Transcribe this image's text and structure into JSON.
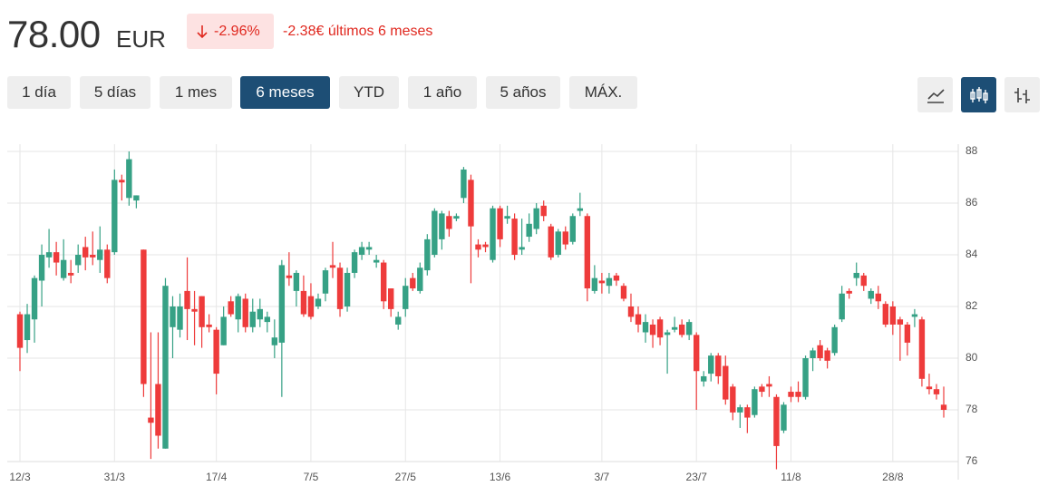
{
  "header": {
    "price": "78.00",
    "currency": "EUR",
    "change_pct": "-2.96%",
    "change_abs": "-2.38€ últimos 6 meses",
    "ranges": [
      "1 día",
      "5 días",
      "1 mes",
      "6 meses",
      "YTD",
      "1 año",
      "5 años",
      "MÁX."
    ]
  },
  "chart_data": {
    "type": "candlestick",
    "up_color": "#36a185",
    "down_color": "#ee3b3b",
    "grid": true,
    "ylim": [
      76,
      88
    ],
    "yticks": [
      76,
      78,
      80,
      82,
      84,
      86,
      88
    ],
    "categories": [
      "12/3",
      null,
      null,
      null,
      null,
      null,
      null,
      null,
      null,
      null,
      null,
      null,
      null,
      "31/3",
      null,
      null,
      null,
      null,
      null,
      null,
      null,
      null,
      null,
      null,
      null,
      null,
      null,
      "17/4",
      null,
      null,
      null,
      null,
      null,
      null,
      null,
      null,
      null,
      null,
      null,
      null,
      "7/5",
      null,
      null,
      null,
      null,
      null,
      null,
      null,
      null,
      null,
      null,
      null,
      null,
      "27/5",
      null,
      null,
      null,
      null,
      null,
      null,
      null,
      null,
      null,
      null,
      null,
      null,
      "13/6",
      null,
      null,
      null,
      null,
      null,
      null,
      null,
      null,
      null,
      null,
      null,
      null,
      null,
      "3/7",
      null,
      null,
      null,
      null,
      null,
      null,
      null,
      null,
      null,
      null,
      null,
      null,
      "23/7",
      null,
      null,
      null,
      null,
      null,
      null,
      null,
      null,
      null,
      null,
      null,
      null,
      "11/8",
      null,
      null,
      null,
      null,
      null,
      null,
      null,
      null,
      null,
      null,
      null,
      null,
      null,
      "28/8",
      null,
      null,
      null,
      null,
      null,
      null,
      null
    ],
    "open": [
      81.7,
      80.7,
      81.5,
      83.0,
      83.9,
      84.1,
      83.1,
      83.3,
      83.6,
      84.3,
      84.0,
      83.8,
      84.2,
      84.1,
      86.9,
      86.2,
      86.1,
      84.2,
      77.7,
      79.0,
      76.5,
      81.2,
      81.1,
      82.6,
      81.9,
      82.4,
      81.3,
      81.1,
      80.5,
      82.2,
      81.5,
      82.3,
      81.2,
      81.5,
      81.4,
      80.5,
      80.6,
      83.2,
      82.6,
      82.6,
      82.4,
      82.0,
      82.5,
      83.6,
      83.5,
      82.0,
      83.3,
      84.0,
      84.2,
      83.7,
      83.7,
      82.7,
      81.3,
      81.9,
      83.1,
      82.6,
      83.4,
      84.0,
      84.6,
      85.5,
      85.4,
      86.2,
      86.9,
      84.4,
      84.4,
      83.8,
      85.8,
      85.4,
      85.4,
      84.2,
      84.7,
      85.0,
      85.9,
      85.1,
      84.0,
      84.9,
      84.5,
      85.7,
      85.5,
      82.6,
      83.0,
      82.8,
      83.2,
      82.8,
      82.0,
      81.7,
      81.0,
      81.3,
      81.5,
      80.9,
      81.1,
      81.3,
      80.9,
      80.9,
      79.1,
      79.4,
      80.1,
      79.7,
      78.9,
      77.9,
      78.1,
      77.8,
      78.9,
      79.0,
      78.5,
      77.2,
      78.7,
      78.7,
      78.5,
      80.0,
      80.5,
      80.3,
      80.2,
      81.5,
      82.6,
      83.1,
      83.2,
      82.3,
      82.5,
      82.1,
      82.0,
      81.5,
      81.3,
      81.6,
      81.5,
      78.9,
      78.8,
      78.2
    ],
    "high": [
      81.8,
      82.1,
      83.2,
      84.4,
      85.0,
      84.5,
      84.6,
      83.8,
      84.4,
      84.7,
      84.9,
      85.1,
      84.4,
      87.3,
      87.1,
      88.0,
      86.3,
      84.2,
      81.0,
      81.0,
      83.1,
      82.4,
      82.5,
      83.9,
      82.6,
      82.4,
      81.7,
      81.2,
      82.0,
      82.4,
      82.5,
      82.5,
      82.3,
      82.3,
      81.8,
      81.5,
      83.8,
      84.1,
      83.4,
      83.2,
      82.9,
      82.5,
      83.5,
      84.5,
      83.7,
      83.5,
      84.2,
      84.5,
      84.5,
      84.0,
      83.8,
      82.7,
      81.8,
      83.1,
      83.3,
      83.7,
      84.8,
      85.8,
      85.7,
      85.7,
      85.6,
      87.4,
      87.1,
      84.6,
      84.5,
      85.9,
      85.9,
      85.9,
      85.6,
      85.4,
      85.6,
      86.0,
      86.1,
      85.2,
      85.0,
      85.1,
      85.6,
      86.4,
      85.6,
      83.6,
      83.3,
      83.3,
      83.3,
      82.9,
      82.5,
      82.0,
      81.7,
      81.5,
      81.6,
      81.1,
      81.6,
      81.5,
      81.5,
      81.0,
      79.5,
      80.2,
      80.2,
      80.1,
      79.0,
      78.2,
      78.2,
      78.9,
      79.0,
      79.3,
      78.6,
      78.3,
      78.9,
      79.1,
      80.1,
      80.4,
      80.7,
      80.4,
      81.3,
      82.8,
      82.7,
      83.7,
      83.3,
      82.7,
      82.8,
      82.2,
      82.2,
      81.6,
      81.4,
      81.9,
      81.6,
      79.4,
      79.0,
      78.9
    ],
    "low": [
      79.5,
      80.2,
      80.6,
      82.0,
      83.5,
      83.2,
      83.0,
      82.9,
      83.3,
      83.4,
      83.6,
      83.3,
      82.9,
      84.0,
      86.1,
      85.9,
      85.8,
      78.5,
      76.1,
      76.5,
      76.5,
      80.0,
      80.8,
      80.7,
      80.5,
      80.4,
      81.0,
      78.6,
      80.5,
      81.6,
      81.0,
      81.0,
      81.0,
      81.2,
      81.0,
      80.0,
      78.5,
      82.8,
      82.0,
      81.6,
      81.5,
      81.9,
      82.2,
      83.1,
      81.6,
      81.8,
      83.1,
      83.8,
      84.0,
      83.5,
      81.9,
      81.6,
      81.1,
      81.6,
      82.6,
      82.5,
      83.2,
      83.9,
      84.2,
      84.7,
      85.3,
      86.0,
      82.9,
      83.9,
      84.1,
      83.7,
      84.3,
      85.2,
      83.8,
      84.0,
      84.5,
      84.8,
      85.3,
      83.8,
      83.9,
      84.2,
      84.4,
      85.5,
      82.2,
      82.5,
      82.5,
      82.5,
      82.8,
      82.2,
      81.4,
      81.0,
      80.6,
      80.4,
      80.5,
      79.4,
      81.0,
      80.8,
      80.7,
      78.0,
      78.9,
      79.1,
      79.0,
      78.2,
      77.6,
      77.3,
      77.1,
      77.7,
      78.5,
      78.5,
      75.7,
      77.1,
      78.3,
      78.3,
      78.4,
      79.5,
      79.9,
      79.6,
      80.1,
      81.4,
      82.3,
      82.8,
      82.6,
      82.1,
      81.9,
      81.2,
      80.9,
      79.9,
      80.1,
      81.2,
      78.9,
      78.6,
      78.4,
      77.7
    ],
    "close": [
      80.4,
      81.7,
      83.1,
      84.0,
      84.1,
      83.7,
      83.8,
      83.2,
      84.0,
      83.9,
      83.9,
      84.2,
      83.1,
      86.9,
      86.8,
      87.7,
      86.3,
      79.0,
      77.5,
      77.0,
      82.8,
      82.0,
      82.0,
      81.9,
      81.8,
      81.2,
      81.2,
      79.4,
      81.6,
      81.7,
      82.4,
      81.2,
      81.8,
      81.9,
      81.6,
      80.8,
      83.6,
      83.1,
      83.3,
      81.7,
      81.6,
      82.3,
      83.4,
      83.5,
      81.9,
      83.3,
      84.1,
      84.3,
      84.3,
      83.8,
      82.2,
      81.9,
      81.6,
      82.8,
      82.7,
      83.5,
      84.6,
      85.7,
      85.6,
      85.0,
      85.5,
      87.3,
      85.1,
      84.2,
      84.3,
      85.8,
      84.6,
      85.5,
      84.0,
      84.3,
      85.2,
      85.8,
      85.5,
      83.9,
      84.9,
      84.4,
      85.5,
      85.8,
      82.7,
      83.1,
      82.9,
      83.1,
      83.0,
      82.3,
      81.6,
      81.3,
      81.4,
      80.9,
      80.8,
      81.0,
      81.2,
      80.9,
      81.4,
      79.5,
      79.3,
      80.1,
      79.3,
      78.4,
      77.9,
      78.1,
      77.7,
      78.8,
      78.7,
      78.9,
      76.6,
      78.2,
      78.5,
      78.5,
      80.0,
      80.3,
      80.0,
      79.9,
      81.2,
      82.5,
      82.5,
      83.3,
      82.8,
      82.6,
      82.2,
      81.3,
      81.3,
      81.3,
      80.6,
      81.7,
      79.2,
      78.8,
      78.6,
      78.0
    ]
  }
}
